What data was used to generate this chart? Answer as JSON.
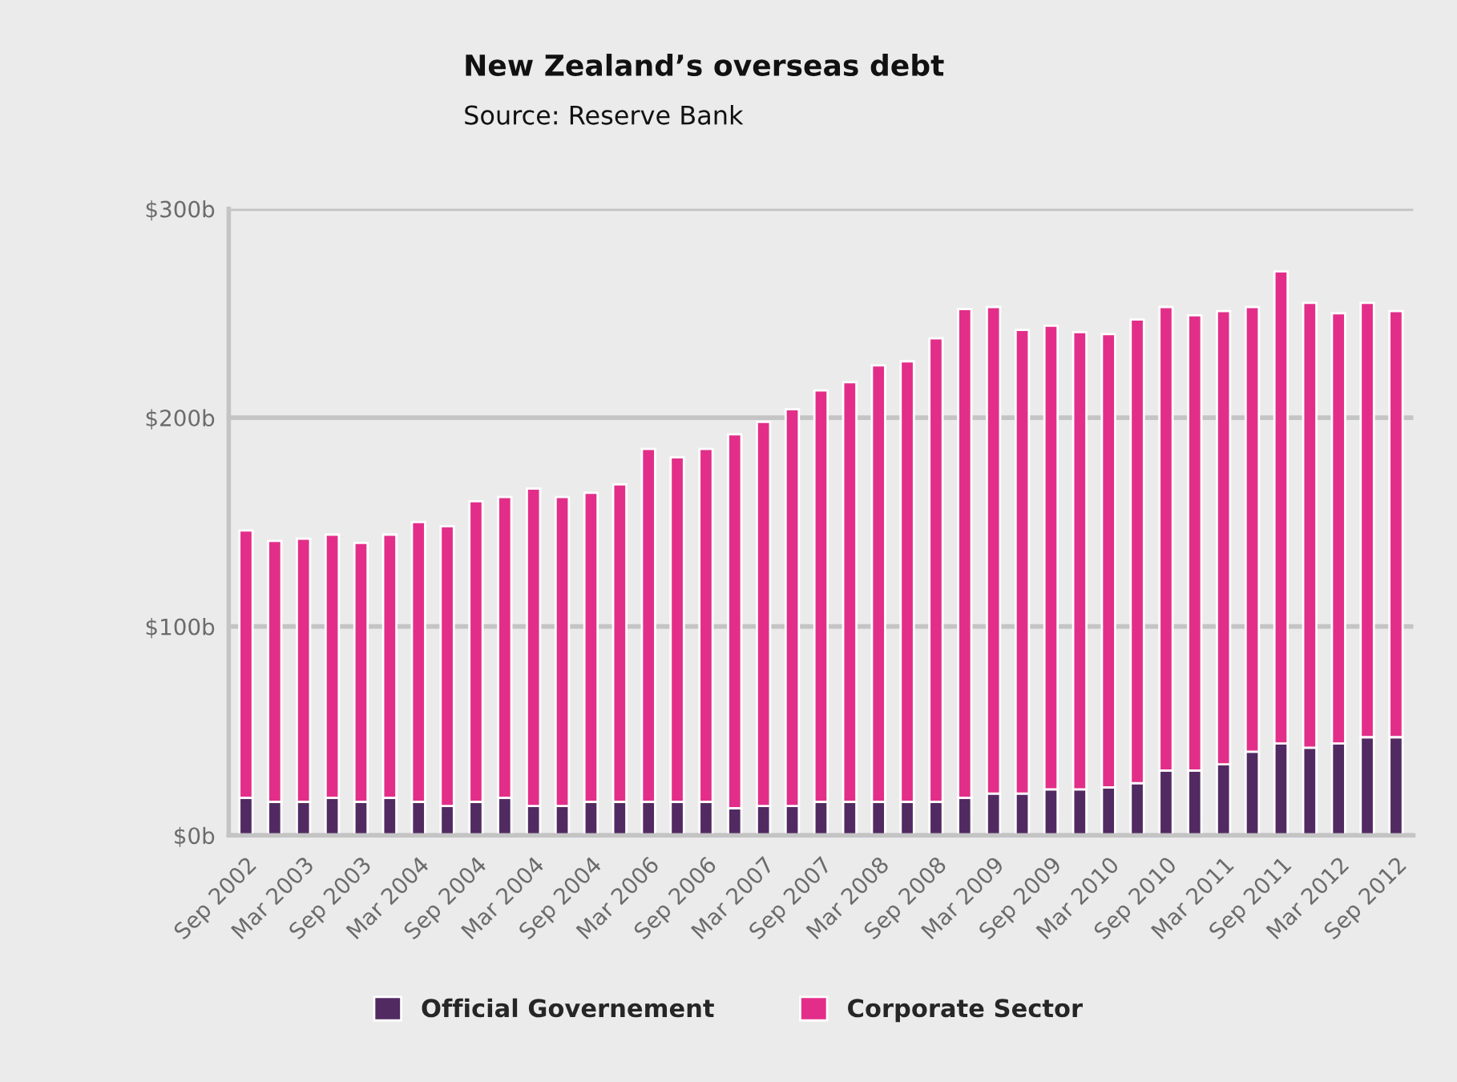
{
  "chart_data": {
    "type": "bar",
    "title": "New Zealand’s overseas debt",
    "subtitle": "Source: Reserve Bank",
    "categories": [
      "Sep 2002",
      null,
      "Mar 2003",
      null,
      "Sep 2003",
      null,
      "Mar 2004",
      null,
      "Sep 2004",
      null,
      "Mar 2004",
      null,
      "Sep 2004",
      null,
      "Mar 2006",
      null,
      "Sep 2006",
      null,
      "Mar 2007",
      null,
      "Sep 2007",
      null,
      "Mar 2008",
      null,
      "Sep 2008",
      null,
      "Mar 2009",
      null,
      "Sep 2009",
      null,
      "Mar 2010",
      null,
      "Sep 2010",
      null,
      "Mar 2011",
      null,
      "Sep 2011",
      null,
      "Mar 2012",
      null,
      "Sep 2012"
    ],
    "stacked": true,
    "series": [
      {
        "name": "Official Governement",
        "color": "#522a62",
        "values": [
          18,
          16,
          16,
          18,
          16,
          18,
          16,
          14,
          16,
          18,
          14,
          14,
          16,
          16,
          16,
          16,
          16,
          13,
          14,
          14,
          16,
          16,
          16,
          16,
          16,
          18,
          20,
          20,
          22,
          22,
          23,
          25,
          31,
          31,
          34,
          40,
          44,
          42,
          44,
          47,
          47
        ]
      },
      {
        "name": "Corporate Sector",
        "color": "#e32e89",
        "values": [
          128,
          125,
          126,
          126,
          124,
          126,
          134,
          134,
          144,
          144,
          152,
          148,
          148,
          152,
          169,
          165,
          169,
          179,
          184,
          190,
          197,
          201,
          209,
          211,
          222,
          234,
          233,
          222,
          222,
          219,
          217,
          222,
          222,
          218,
          217,
          213,
          226,
          213,
          206,
          208,
          204
        ]
      }
    ],
    "ylim": [
      0,
      300
    ],
    "yticks": [
      {
        "value": 0,
        "label": "$0b"
      },
      {
        "value": 100,
        "label": "$100b"
      },
      {
        "value": 200,
        "label": "$200b"
      },
      {
        "value": 300,
        "label": "$300b"
      }
    ],
    "grid": "y",
    "legend": "bottom"
  }
}
